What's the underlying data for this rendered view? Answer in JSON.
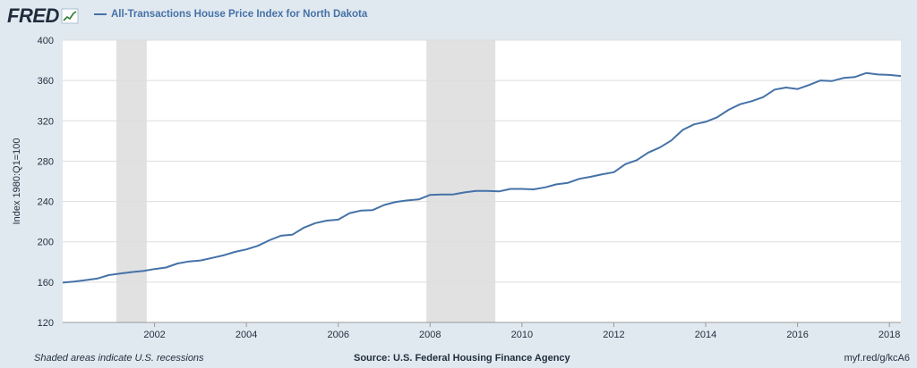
{
  "header": {
    "logo_text": "FRED",
    "legend_label": "All-Transactions House Price Index for North Dakota"
  },
  "colors": {
    "background": "#e1e9f0",
    "plot_background": "#ffffff",
    "series": "#4572a7",
    "recession": "#e1e1e1",
    "grid": "#dddddd",
    "text": "#1f2d3d"
  },
  "footer": {
    "note": "Shaded areas indicate U.S. recessions",
    "source": "Source: U.S. Federal Housing Finance Agency",
    "link": "myf.red/g/kcA6"
  },
  "chart_data": {
    "type": "line",
    "title": "",
    "xlabel": "",
    "ylabel": "Index 1980:Q1=100",
    "xlim": [
      2000.0,
      2018.25
    ],
    "ylim": [
      120,
      400
    ],
    "yticks": [
      120,
      160,
      200,
      240,
      280,
      320,
      360,
      400
    ],
    "xticks": [
      "2002",
      "2004",
      "2006",
      "2008",
      "2010",
      "2012",
      "2014",
      "2016",
      "2018"
    ],
    "grid": true,
    "legend_placement": "top-left",
    "recessions": [
      [
        2001.17,
        2001.83
      ],
      [
        2007.92,
        2009.42
      ]
    ],
    "series": [
      {
        "name": "All-Transactions House Price Index for North Dakota",
        "points": [
          [
            2000.0,
            159.5
          ],
          [
            2000.25,
            160.5
          ],
          [
            2000.5,
            162
          ],
          [
            2000.75,
            163.5
          ],
          [
            2001.0,
            167
          ],
          [
            2001.25,
            168.5
          ],
          [
            2001.5,
            170
          ],
          [
            2001.75,
            171
          ],
          [
            2002.0,
            173
          ],
          [
            2002.25,
            174.5
          ],
          [
            2002.5,
            178.5
          ],
          [
            2002.75,
            180.5
          ],
          [
            2003.0,
            181.5
          ],
          [
            2003.25,
            184
          ],
          [
            2003.5,
            186.5
          ],
          [
            2003.75,
            190
          ],
          [
            2004.0,
            192.5
          ],
          [
            2004.25,
            196
          ],
          [
            2004.5,
            201.5
          ],
          [
            2004.75,
            206
          ],
          [
            2005.0,
            207
          ],
          [
            2005.25,
            214
          ],
          [
            2005.5,
            218.5
          ],
          [
            2005.75,
            221
          ],
          [
            2006.0,
            222
          ],
          [
            2006.25,
            228.5
          ],
          [
            2006.5,
            231
          ],
          [
            2006.75,
            231.5
          ],
          [
            2007.0,
            236.5
          ],
          [
            2007.25,
            239.5
          ],
          [
            2007.5,
            241
          ],
          [
            2007.75,
            242
          ],
          [
            2008.0,
            246.5
          ],
          [
            2008.25,
            247
          ],
          [
            2008.5,
            247
          ],
          [
            2008.75,
            249
          ],
          [
            2009.0,
            250.5
          ],
          [
            2009.25,
            250.5
          ],
          [
            2009.5,
            250
          ],
          [
            2009.75,
            252.5
          ],
          [
            2010.0,
            252.5
          ],
          [
            2010.25,
            252
          ],
          [
            2010.5,
            254
          ],
          [
            2010.75,
            257
          ],
          [
            2011.0,
            258.5
          ],
          [
            2011.25,
            262.5
          ],
          [
            2011.5,
            264.5
          ],
          [
            2011.75,
            267
          ],
          [
            2012.0,
            269
          ],
          [
            2012.25,
            277
          ],
          [
            2012.5,
            281
          ],
          [
            2012.75,
            288.5
          ],
          [
            2013.0,
            293.5
          ],
          [
            2013.25,
            300.5
          ],
          [
            2013.5,
            311
          ],
          [
            2013.75,
            316.5
          ],
          [
            2014.0,
            319
          ],
          [
            2014.25,
            323.5
          ],
          [
            2014.5,
            331
          ],
          [
            2014.75,
            336.5
          ],
          [
            2015.0,
            339.5
          ],
          [
            2015.25,
            343.5
          ],
          [
            2015.5,
            351
          ],
          [
            2015.75,
            353
          ],
          [
            2016.0,
            351.5
          ],
          [
            2016.25,
            355.5
          ],
          [
            2016.5,
            360
          ],
          [
            2016.75,
            359.5
          ],
          [
            2017.0,
            362.5
          ],
          [
            2017.25,
            363.5
          ],
          [
            2017.5,
            367.5
          ],
          [
            2017.75,
            366
          ],
          [
            2018.0,
            365.5
          ],
          [
            2018.25,
            364.5
          ]
        ]
      }
    ]
  }
}
